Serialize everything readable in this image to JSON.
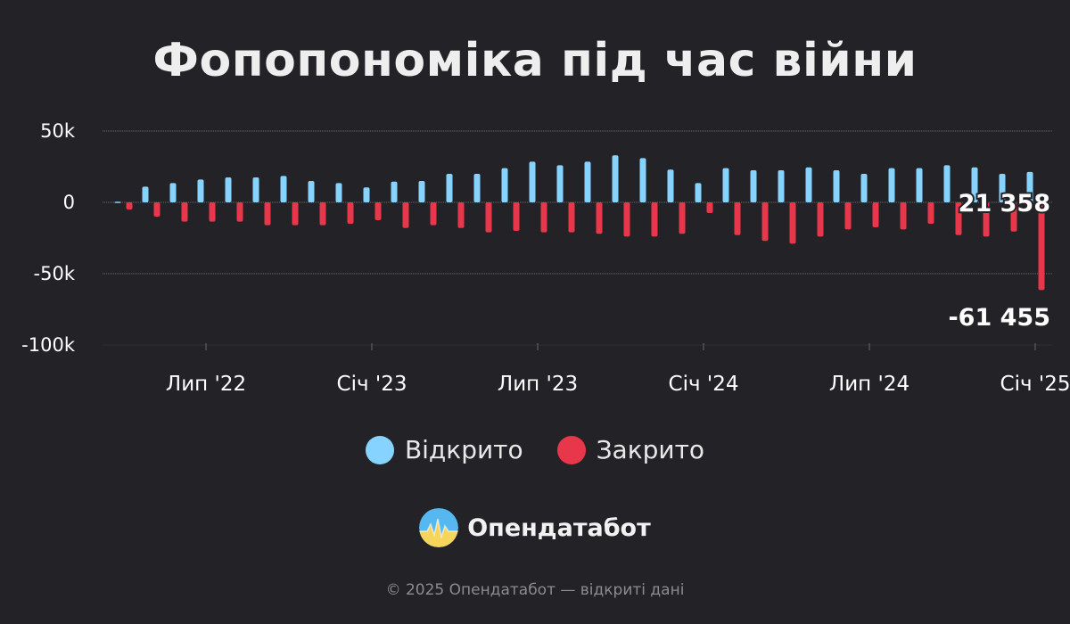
{
  "title": "Фопопономіка під час війни",
  "legend": [
    {
      "label": "Відкрито",
      "color": "#87d3ff"
    },
    {
      "label": "Закрито",
      "color": "#e8364a"
    }
  ],
  "brand": {
    "name": "Опендатабот",
    "logo_icon": "opendatabot-logo-icon"
  },
  "footer": "© 2025 Опендатабот — відкриті дані",
  "chart_data": {
    "type": "bar",
    "y_ticks": [
      "50k",
      "0",
      "-50k",
      "-100k"
    ],
    "ylim": [
      -100000,
      50000
    ],
    "x_tick_labels": [
      "Лип '22",
      "Січ '23",
      "Лип '23",
      "Січ '24",
      "Лип '24",
      "Січ '25"
    ],
    "x_tick_indices": [
      3,
      9,
      15,
      21,
      27,
      33
    ],
    "grid": true,
    "series": [
      {
        "name": "Відкрито",
        "color": "#87d3ff",
        "values": [
          500,
          11000,
          13500,
          16000,
          17500,
          17500,
          18500,
          15000,
          13500,
          10500,
          14500,
          15000,
          20000,
          20000,
          24000,
          28500,
          26000,
          28500,
          33000,
          31000,
          23000,
          13500,
          24000,
          22500,
          22500,
          24500,
          22500,
          20000,
          24000,
          24000,
          26000,
          24500,
          20000,
          21358
        ]
      },
      {
        "name": "Закрито",
        "color": "#e8364a",
        "values": [
          -5000,
          -10000,
          -13500,
          -13500,
          -13500,
          -16000,
          -16000,
          -16000,
          -15000,
          -12500,
          -18000,
          -16000,
          -18000,
          -21000,
          -20000,
          -21000,
          -21000,
          -22000,
          -24000,
          -24000,
          -22000,
          -7500,
          -23000,
          -27000,
          -29000,
          -24000,
          -19000,
          -17500,
          -19000,
          -15000,
          -23000,
          -24000,
          -20500,
          -61455
        ]
      }
    ],
    "annotations": [
      "21 358",
      "-61 455"
    ]
  }
}
